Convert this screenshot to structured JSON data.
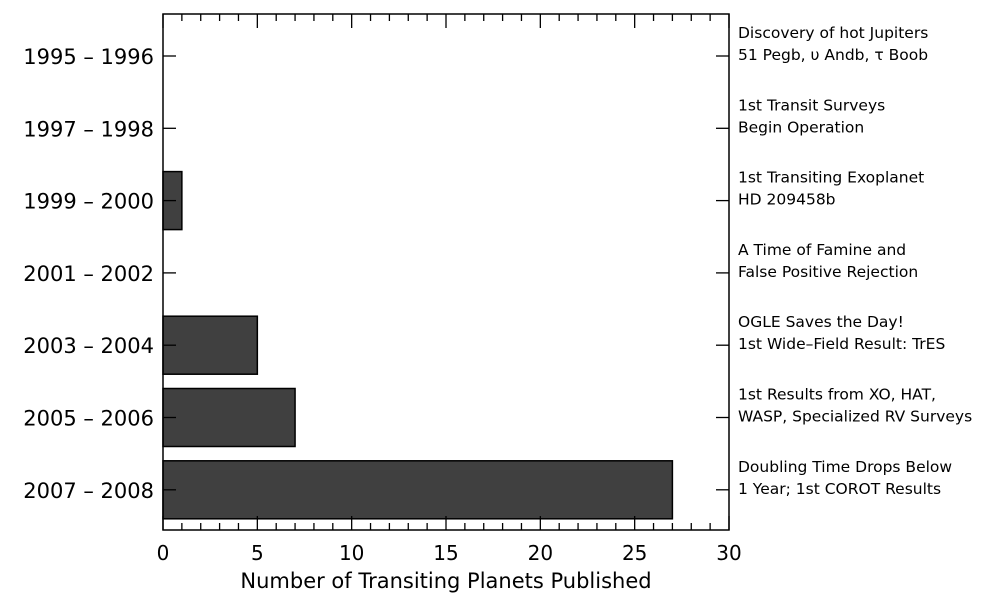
{
  "chart_data": {
    "type": "bar",
    "orientation": "horizontal",
    "categories": [
      "1995 – 1996",
      "1997 – 1998",
      "1999 – 2000",
      "2001 – 2002",
      "2003 – 2004",
      "2005 – 2006",
      "2007 – 2008"
    ],
    "values": [
      0,
      0,
      1,
      0,
      5,
      7,
      27
    ],
    "xlabel": "Number of Transiting Planets Published",
    "ylabel": "",
    "title": "",
    "xlim": [
      0,
      30
    ],
    "xticks": [
      0,
      5,
      10,
      15,
      20,
      25,
      30
    ],
    "minor_tick_step": 1,
    "grid": false,
    "bar_color": "#404040",
    "annotations": [
      [
        "Discovery of hot Jupiters",
        "51 Pegb, υ Andb, τ Boob"
      ],
      [
        "1st Transit Surveys",
        "Begin Operation"
      ],
      [
        "1st Transiting Exoplanet",
        "HD 209458b"
      ],
      [
        "A Time of Famine and",
        "False Positive Rejection"
      ],
      [
        "OGLE Saves the Day!",
        "1st Wide–Field Result: TrES"
      ],
      [
        "1st Results from XO, HAT,",
        "WASP, Specialized RV Surveys"
      ],
      [
        "Doubling Time Drops Below",
        "1 Year; 1st COROT Results"
      ]
    ]
  }
}
